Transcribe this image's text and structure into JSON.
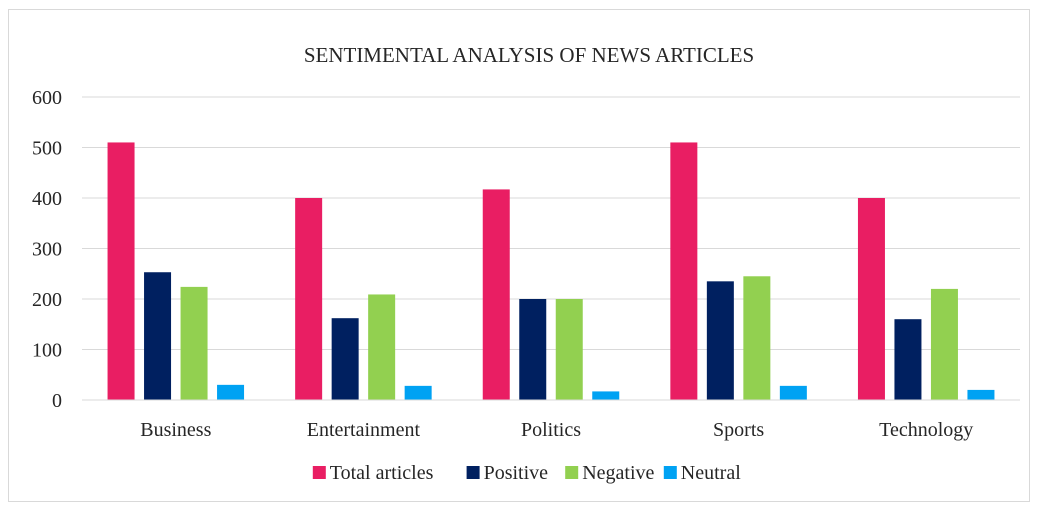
{
  "chart_data": {
    "type": "bar",
    "title": "SENTIMENTAL ANALYSIS OF NEWS ARTICLES",
    "xlabel": "",
    "ylabel": "",
    "ylim": [
      0,
      600
    ],
    "yticks": [
      0,
      100,
      200,
      300,
      400,
      500,
      600
    ],
    "grid": true,
    "legend_position": "bottom",
    "categories": [
      "Business",
      "Entertainment",
      "Politics",
      "Sports",
      "Technology"
    ],
    "series": [
      {
        "name": "Total articles",
        "color": "#E91E63",
        "values": [
          510,
          400,
          417,
          510,
          400
        ]
      },
      {
        "name": "Positive",
        "color": "#002060",
        "values": [
          253,
          162,
          200,
          235,
          160
        ]
      },
      {
        "name": "Negative",
        "color": "#92D050",
        "values": [
          224,
          209,
          200,
          245,
          220
        ]
      },
      {
        "name": "Neutral",
        "color": "#00A2F3",
        "values": [
          30,
          28,
          17,
          28,
          20
        ]
      }
    ]
  }
}
